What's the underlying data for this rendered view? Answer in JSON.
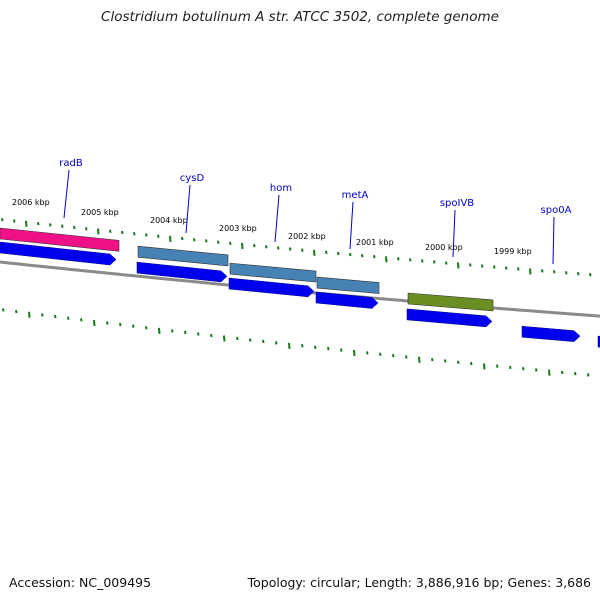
{
  "title": "Clostridium botulinum A str. ATCC 3502, complete genome",
  "footer": {
    "accession": "Accession: NC_009495",
    "topology": "Topology: circular; Length: 3,886,916 bp; Genes: 3,686"
  },
  "colors": {
    "backbone": "#8a8a8a",
    "tick": "#1a7a1a",
    "cds": "#0000ee",
    "label": "#0000cc",
    "radB": "#ee1188",
    "cysD": "#4682b4",
    "hom": "#4682b4",
    "metA": "#4682b4",
    "spoIVB": "#6b8e23"
  },
  "kbp_labels": [
    "2006 kbp",
    "2005 kbp",
    "2004 kbp",
    "2003 kbp",
    "2002 kbp",
    "2001 kbp",
    "2000 kbp",
    "1999 kbp"
  ],
  "gene_labels": [
    "radB",
    "cysD",
    "hom",
    "metA",
    "spoIVB",
    "spo0A"
  ]
}
